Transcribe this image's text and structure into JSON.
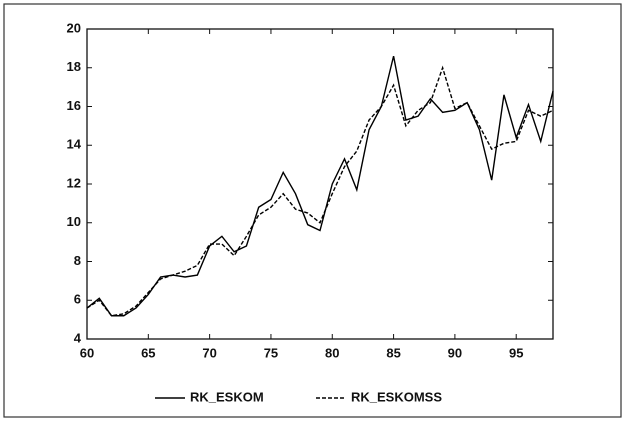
{
  "chart_data": {
    "type": "line",
    "x": [
      60,
      61,
      62,
      63,
      64,
      65,
      66,
      67,
      68,
      69,
      70,
      71,
      72,
      73,
      74,
      75,
      76,
      77,
      78,
      79,
      80,
      81,
      82,
      83,
      84,
      85,
      86,
      87,
      88,
      89,
      90,
      91,
      92,
      93,
      94,
      95,
      96,
      97,
      98
    ],
    "series": [
      {
        "name": "RK_ESKOM",
        "color": "#000000",
        "line_style": "solid",
        "values": [
          5.6,
          6.1,
          5.2,
          5.2,
          5.6,
          6.3,
          7.2,
          7.3,
          7.2,
          7.3,
          8.8,
          9.3,
          8.5,
          8.8,
          10.8,
          11.2,
          12.6,
          11.5,
          9.9,
          9.6,
          12.0,
          13.3,
          11.7,
          14.8,
          16.0,
          18.6,
          15.3,
          15.5,
          16.4,
          15.7,
          15.8,
          16.2,
          14.8,
          12.2,
          16.6,
          14.4,
          16.1,
          14.2,
          16.8
        ]
      },
      {
        "name": "RK_ESKOMSS",
        "color": "#000000",
        "line_style": "dashed",
        "values": [
          5.6,
          6.0,
          5.2,
          5.3,
          5.7,
          6.4,
          7.1,
          7.3,
          7.5,
          7.8,
          8.9,
          8.9,
          8.3,
          9.3,
          10.4,
          10.8,
          11.5,
          10.7,
          10.5,
          10.0,
          11.5,
          12.9,
          13.7,
          15.3,
          16.0,
          17.1,
          15.0,
          15.8,
          16.2,
          18.0,
          15.9,
          16.2,
          15.0,
          13.8,
          14.1,
          14.2,
          15.8,
          15.5,
          15.8
        ]
      }
    ],
    "xlim": [
      60,
      98
    ],
    "xticks": [
      60,
      65,
      70,
      75,
      80,
      85,
      90,
      95
    ],
    "ylim": [
      4,
      20
    ],
    "yticks": [
      4,
      6,
      8,
      10,
      12,
      14,
      16,
      18,
      20
    ],
    "grid": false,
    "legend": "bottom"
  }
}
